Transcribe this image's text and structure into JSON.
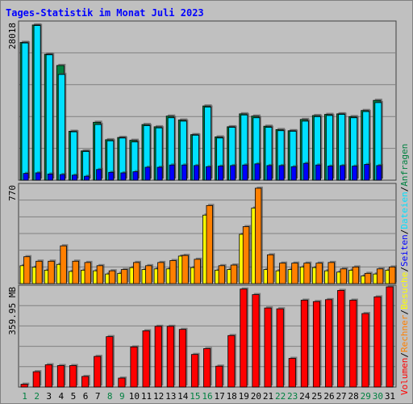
{
  "colors": {
    "background": "#c0c0c0",
    "grid": "#808080",
    "anfragen": "#008040",
    "dateien": "#00e0ff",
    "seiten": "#0000ff",
    "besuche": "#ffff00",
    "rechner": "#ff8000",
    "volumen": "#ff0000",
    "title": "#0000ff",
    "weekend_day": "#008040",
    "weekday_day": "#000000"
  },
  "chart_data": {
    "type": "bar",
    "title": "Tages-Statistik im Monat Juli 2023",
    "categories": [
      "1",
      "2",
      "3",
      "4",
      "5",
      "6",
      "7",
      "8",
      "9",
      "10",
      "11",
      "12",
      "13",
      "14",
      "15",
      "16",
      "17",
      "18",
      "19",
      "20",
      "21",
      "22",
      "23",
      "24",
      "25",
      "26",
      "27",
      "28",
      "29",
      "30",
      "31"
    ],
    "weekend_days": [
      1,
      2,
      8,
      9,
      15,
      16,
      22,
      23,
      29,
      30
    ],
    "panels": [
      {
        "axis_max_label": "28018",
        "ylim": [
          0,
          28018
        ],
        "grid": true,
        "series": [
          {
            "name": "Anfragen",
            "values": [
              24500,
              27600,
              22400,
              20400,
              8700,
              5200,
              10300,
              7200,
              7600,
              7100,
              9900,
              9500,
              11400,
              10700,
              8100,
              13200,
              7700,
              9500,
              11800,
              11400,
              9600,
              9000,
              8800,
              10800,
              11500,
              11700,
              11800,
              11300,
              12400,
              14200,
              0
            ]
          },
          {
            "name": "Dateien",
            "values": [
              24400,
              27500,
              22300,
              18800,
              8600,
              5100,
              9900,
              7000,
              7500,
              6800,
              9700,
              9300,
              11100,
              10500,
              8000,
              13000,
              7500,
              9400,
              11600,
              11100,
              9400,
              8800,
              8700,
              10500,
              11300,
              11500,
              11700,
              11100,
              12200,
              13800,
              0
            ]
          },
          {
            "name": "Seiten",
            "values": [
              1200,
              1300,
              1100,
              1000,
              900,
              700,
              1900,
              1400,
              1300,
              1500,
              2300,
              2300,
              2700,
              2700,
              2600,
              2400,
              2500,
              2600,
              2700,
              2900,
              2600,
              2600,
              2400,
              3000,
              2700,
              2500,
              2600,
              2500,
              2800,
              2600,
              0
            ]
          }
        ]
      },
      {
        "axis_max_label": "770",
        "ylim": [
          0,
          770
        ],
        "grid": true,
        "series": [
          {
            "name": "Besuche",
            "values": [
              140,
              128,
              105,
              150,
              95,
              105,
              100,
              75,
              80,
              125,
              110,
              115,
              115,
              215,
              125,
              535,
              105,
              110,
              385,
              590,
              110,
              100,
              110,
              130,
              125,
              100,
              90,
              105,
              60,
              75,
              105
            ]
          },
          {
            "name": "Rechner",
            "values": [
              210,
              175,
              175,
              295,
              175,
              165,
              140,
              100,
              110,
              165,
              140,
              165,
              180,
              220,
              190,
              610,
              140,
              145,
              445,
              745,
              225,
              160,
              160,
              160,
              160,
              165,
              115,
              130,
              80,
              115,
              130
            ]
          }
        ]
      },
      {
        "axis_max_label": "359.95 MB",
        "ylim": [
          0,
          359.95
        ],
        "grid": true,
        "series": [
          {
            "name": "Volumen",
            "values": [
              10,
              55,
              80,
              77,
              77,
              38,
              110,
              181,
              32,
              144,
              202,
              218,
              218,
              207,
              117,
              138,
              75,
              185,
              352,
              332,
              284,
              281,
              103,
              312,
              307,
              314,
              347,
              312,
              264,
              324,
              377
            ]
          }
        ]
      }
    ],
    "legend": {
      "placement": "right (vertical)",
      "entries": [
        "Volumen",
        "Rechner",
        "Besuche",
        "Seiten",
        "Dateien",
        "Anfragen"
      ],
      "separator": "/"
    }
  }
}
